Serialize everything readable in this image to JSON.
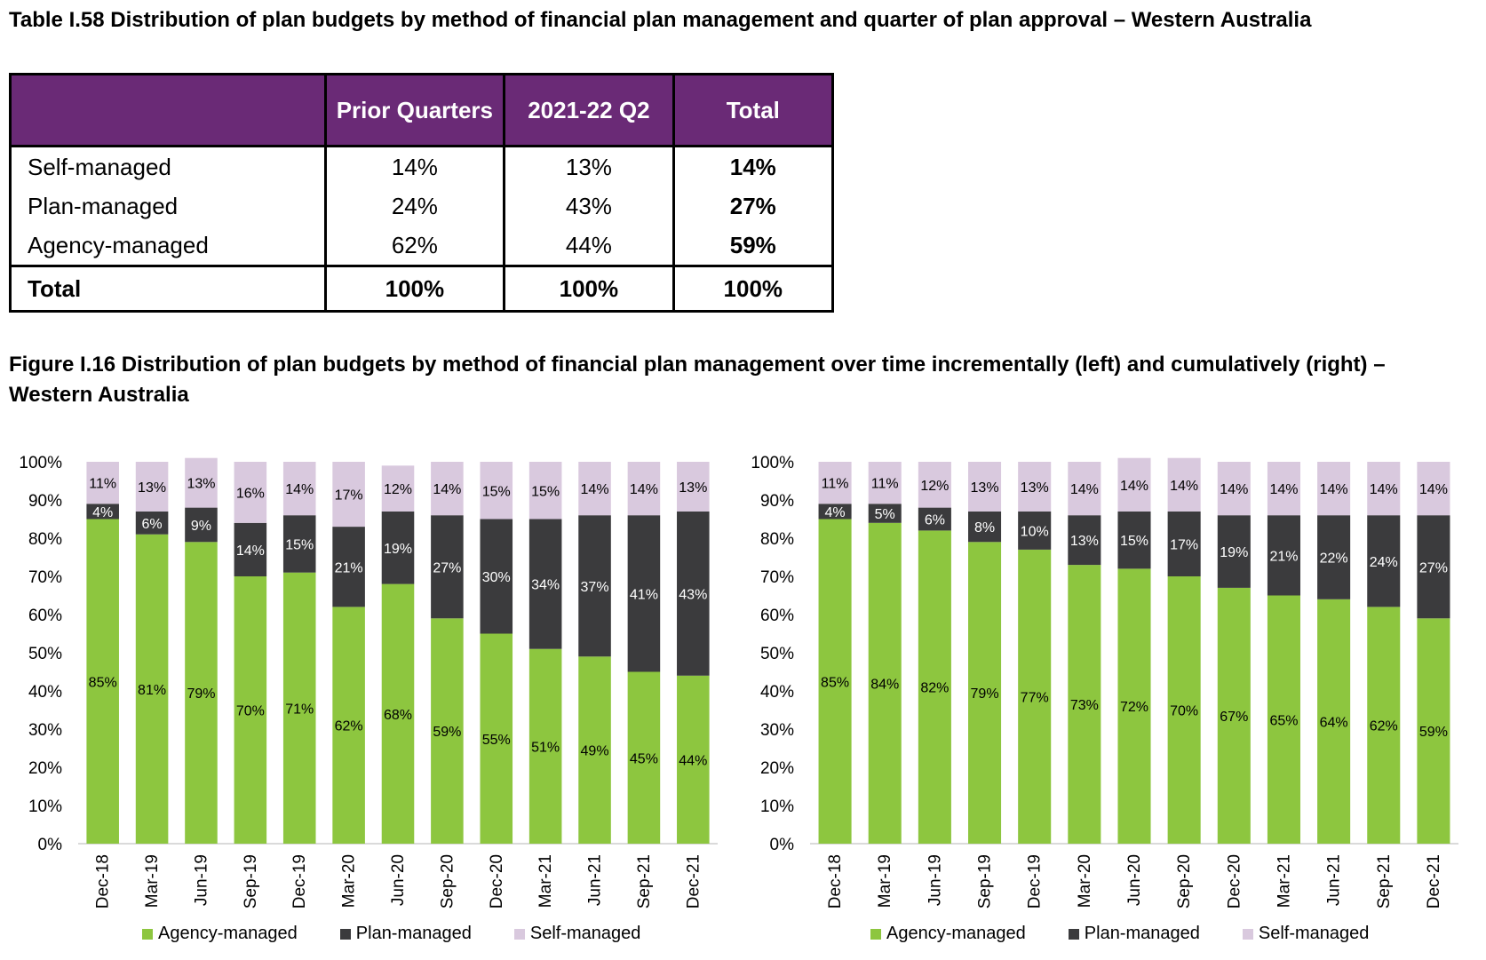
{
  "table_title": "Table I.58 Distribution of plan budgets by method of financial plan management and quarter of plan approval – Western Australia",
  "table": {
    "headers": [
      "",
      "Prior Quarters",
      "2021-22 Q2",
      "Total"
    ],
    "rows": [
      {
        "label": "Self-managed",
        "prior": "14%",
        "q2": "13%",
        "total": "14%"
      },
      {
        "label": "Plan-managed",
        "prior": "24%",
        "q2": "43%",
        "total": "27%"
      },
      {
        "label": "Agency-managed",
        "prior": "62%",
        "q2": "44%",
        "total": "59%"
      }
    ],
    "total_row": {
      "label": "Total",
      "prior": "100%",
      "q2": "100%",
      "total": "100%"
    }
  },
  "figure_title": "Figure I.16 Distribution of plan budgets by method of financial plan management over time incrementally (left) and cumulatively (right) – Western Australia",
  "colors": {
    "agency": "#8dc63f",
    "plan": "#3b3b3d",
    "self": "#d9c9de",
    "header": "#6a2a76"
  },
  "chart_data": [
    {
      "type": "bar",
      "stacked": true,
      "categories": [
        "Dec-18",
        "Mar-19",
        "Jun-19",
        "Sep-19",
        "Dec-19",
        "Mar-20",
        "Jun-20",
        "Sep-20",
        "Dec-20",
        "Mar-21",
        "Jun-21",
        "Sep-21",
        "Dec-21"
      ],
      "series": [
        {
          "name": "Agency-managed",
          "values": [
            85,
            81,
            79,
            70,
            71,
            62,
            68,
            59,
            55,
            51,
            49,
            45,
            44
          ]
        },
        {
          "name": "Plan-managed",
          "values": [
            4,
            6,
            9,
            14,
            15,
            21,
            19,
            27,
            30,
            34,
            37,
            41,
            43
          ]
        },
        {
          "name": "Self-managed",
          "values": [
            11,
            13,
            13,
            16,
            14,
            17,
            12,
            14,
            15,
            15,
            14,
            14,
            13
          ]
        }
      ],
      "yticks": [
        "0%",
        "10%",
        "20%",
        "30%",
        "40%",
        "50%",
        "60%",
        "70%",
        "80%",
        "90%",
        "100%"
      ],
      "ylim": [
        0,
        100
      ],
      "legend": "bottom"
    },
    {
      "type": "bar",
      "stacked": true,
      "categories": [
        "Dec-18",
        "Mar-19",
        "Jun-19",
        "Sep-19",
        "Dec-19",
        "Mar-20",
        "Jun-20",
        "Sep-20",
        "Dec-20",
        "Mar-21",
        "Jun-21",
        "Sep-21",
        "Dec-21"
      ],
      "series": [
        {
          "name": "Agency-managed",
          "values": [
            85,
            84,
            82,
            79,
            77,
            73,
            72,
            70,
            67,
            65,
            64,
            62,
            59
          ]
        },
        {
          "name": "Plan-managed",
          "values": [
            4,
            5,
            6,
            8,
            10,
            13,
            15,
            17,
            19,
            21,
            22,
            24,
            27
          ]
        },
        {
          "name": "Self-managed",
          "values": [
            11,
            11,
            12,
            13,
            13,
            14,
            14,
            14,
            14,
            14,
            14,
            14,
            14
          ]
        }
      ],
      "yticks": [
        "0%",
        "10%",
        "20%",
        "30%",
        "40%",
        "50%",
        "60%",
        "70%",
        "80%",
        "90%",
        "100%"
      ],
      "ylim": [
        0,
        100
      ],
      "legend": "bottom"
    }
  ]
}
